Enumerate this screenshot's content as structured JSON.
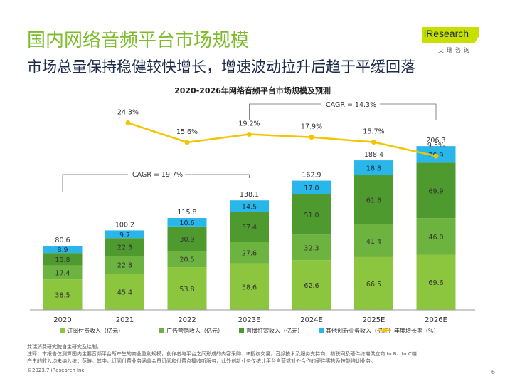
{
  "page": {
    "title": "国内网络音频平台市场规模",
    "subtitle": "市场总量保持稳健较快增长，增速波动拉升后趋于平缓回落",
    "logo_text": "iResearch",
    "logo_sub": "艾瑞咨询",
    "page_number": "6",
    "source": "艾瑞消费研究院自主研究及绘制。",
    "note_line1": "注释：本报告仅测算国内主要音频平台所产生的商业盈利规模，创作者与平台之间形成的内容采购、IP授权交易，音频技术及服务支持商、物联网及硬件终端供应商 to B、to C端",
    "note_line2": "产生的收入均未纳入统计范畴。其中，订阅付费业务涵盖会员订阅和付费点播收听服务，此外创新业务仅统计平台自营或对外合作的硬件零售及技能培训业务。",
    "copyright": "©2023.7 iResearch Inc."
  },
  "colors": {
    "subscription": "#8cc63e",
    "advertising": "#6db33f",
    "livestream": "#4e9a2f",
    "other": "#29b6e8",
    "growth_line": "#f5c400",
    "title": "#7dbb2a"
  },
  "chart_data": {
    "type": "bar",
    "title": "2020-2026年网络音频平台市场规模及预测",
    "categories": [
      "2020",
      "2021",
      "2022",
      "2023E",
      "2024E",
      "2025E",
      "2026E"
    ],
    "series": [
      {
        "name": "订阅付费收入（亿元）",
        "values": [
          38.5,
          45.4,
          53.8,
          58.6,
          62.6,
          66.5,
          69.6
        ]
      },
      {
        "name": "广告营销收入（亿元）",
        "values": [
          17.4,
          22.8,
          20.5,
          27.6,
          32.3,
          41.4,
          46.0
        ]
      },
      {
        "name": "直播打赏收入（亿元）",
        "values": [
          15.8,
          22.3,
          30.9,
          37.4,
          51.0,
          61.8,
          69.9
        ]
      },
      {
        "name": "其他创新业务收入（亿元）",
        "values": [
          8.9,
          9.7,
          10.6,
          14.5,
          17.0,
          18.8,
          20.9
        ]
      }
    ],
    "totals": [
      "80.6",
      "100.2",
      "115.8",
      "138.1",
      "162.9",
      "188.4",
      "206.3"
    ],
    "growth_series": {
      "name": "年度增长率（%）",
      "categories": [
        "2021",
        "2022",
        "2023E",
        "2024E",
        "2025E",
        "2026E"
      ],
      "values": [
        24.3,
        15.6,
        19.2,
        17.9,
        15.7,
        9.5
      ],
      "labels": [
        "24.3%",
        "15.6%",
        "19.2%",
        "17.9%",
        "15.7%",
        "9.5%"
      ]
    },
    "annotations": [
      "CAGR = 19.7%",
      "CAGR = 14.3%"
    ],
    "ylim": [
      0,
      220
    ],
    "legend": "bottom"
  }
}
